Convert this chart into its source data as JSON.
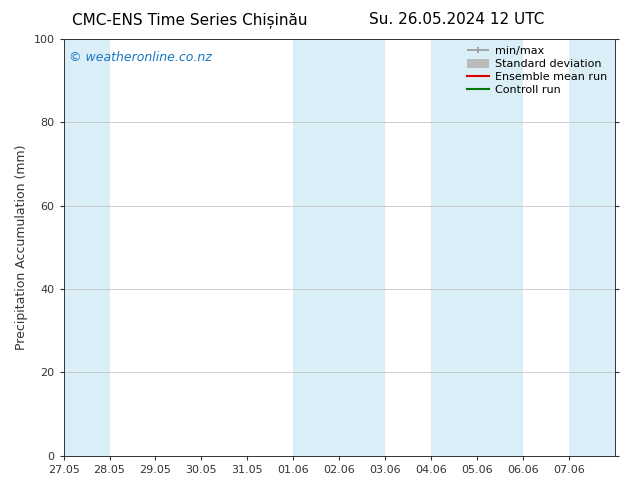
{
  "title_left": "CMC-ENS Time Series Chișinău",
  "title_right": "Su. 26.05.2024 12 UTC",
  "ylabel": "Precipitation Accumulation (mm)",
  "ylim": [
    0,
    100
  ],
  "yticks": [
    0,
    20,
    40,
    60,
    80,
    100
  ],
  "bg_color": "#ffffff",
  "plot_bg_color": "#ffffff",
  "watermark": "© weatheronline.co.nz",
  "watermark_color": "#1777c4",
  "shaded_color": "#daeef7",
  "shaded_regions": [
    [
      0,
      1
    ],
    [
      5,
      7
    ],
    [
      8,
      10
    ],
    [
      11,
      12
    ]
  ],
  "xtick_positions": [
    0,
    1,
    2,
    3,
    4,
    5,
    6,
    7,
    8,
    9,
    10,
    11
  ],
  "xtick_labels": [
    "27.05",
    "28.05",
    "29.05",
    "30.05",
    "31.05",
    "01.06",
    "02.06",
    "03.06",
    "04.06",
    "05.06",
    "06.06",
    "07.06"
  ],
  "xlim": [
    0,
    12
  ],
  "legend_labels": [
    "min/max",
    "Standard deviation",
    "Ensemble mean run",
    "Controll run"
  ],
  "legend_colors_line": [
    "#999999",
    "#bbbbbb",
    "#dd0000",
    "#007700"
  ],
  "font_size_title": 11,
  "font_size_tick": 8,
  "font_size_ylabel": 9,
  "font_size_watermark": 9,
  "font_size_legend": 8,
  "grid_color": "#bbbbbb",
  "axis_color": "#333333",
  "tick_color": "#333333"
}
